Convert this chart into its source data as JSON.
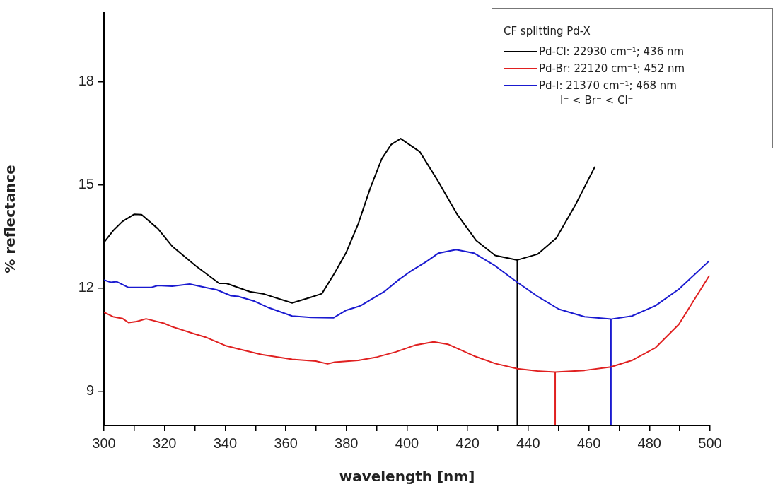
{
  "chart_data": {
    "type": "line",
    "xlabel": "wavelength [nm]",
    "ylabel": "% reflectance",
    "legend_title": "CF splitting Pd-X",
    "annotations": [
      "I⁻ < Br⁻ < Cl⁻"
    ],
    "xlim": [
      300,
      500
    ],
    "xticks": [
      300,
      {
        "value": 310,
        "label": null
      },
      320,
      {
        "value": 330,
        "label": null
      },
      340,
      {
        "value": 350,
        "label": null
      },
      360,
      {
        "value": 370,
        "label": null
      },
      380,
      {
        "value": 390,
        "label": null
      },
      400,
      {
        "value": 410,
        "label": null
      },
      420,
      {
        "value": 430,
        "label": null
      },
      440,
      {
        "value": 450,
        "label": null
      },
      460,
      {
        "value": 470,
        "label": null
      },
      480,
      {
        "value": 490,
        "label": null
      },
      500
    ],
    "ylim": [
      8,
      20
    ],
    "yticks": [
      9,
      12,
      15,
      18
    ],
    "grid": false,
    "legend": "top right",
    "series": [
      {
        "name": "Pd-Cl: 22930 cm⁻¹; 436 nm",
        "color": "#000000",
        "x": [
          300,
          303,
          306.1,
          310,
          312.4,
          317.8,
          322.5,
          330.3,
          338,
          340.4,
          348.1,
          352.8,
          362.1,
          368.4,
          371.9,
          376.1,
          380,
          383.9,
          387.8,
          391.7,
          394.8,
          397.9,
          404.2,
          410.4,
          416.6,
          422.8,
          429.1,
          436.4,
          443.1,
          449.3,
          455.5,
          462
        ],
        "values": [
          13.32,
          13.66,
          13.93,
          14.14,
          14.13,
          13.72,
          13.21,
          12.64,
          12.13,
          12.13,
          11.89,
          11.82,
          11.56,
          11.73,
          11.83,
          12.43,
          13.04,
          13.86,
          14.88,
          15.76,
          16.17,
          16.34,
          15.96,
          15.08,
          14.13,
          13.38,
          12.94,
          12.81,
          12.98,
          13.45,
          14.4,
          15.52
        ]
      },
      {
        "name": "Pd-Br: 22120 cm⁻¹; 452 nm",
        "color": "#e02020",
        "x": [
          300,
          303,
          306.1,
          308.1,
          310.8,
          313.9,
          319.8,
          322.5,
          329.5,
          333.4,
          340.4,
          345,
          352,
          362.1,
          369.9,
          373.8,
          376.1,
          383.9,
          390.2,
          396.4,
          402.6,
          408.8,
          413.5,
          422.1,
          429.1,
          436.4,
          443.1,
          448.9,
          458.6,
          467.3,
          474.2,
          482,
          489.7,
          499.8
        ],
        "values": [
          11.29,
          11.16,
          11.11,
          10.99,
          11.02,
          11.1,
          10.97,
          10.87,
          10.67,
          10.57,
          10.31,
          10.21,
          10.06,
          9.92,
          9.87,
          9.79,
          9.84,
          9.89,
          9.99,
          10.14,
          10.33,
          10.43,
          10.36,
          10.02,
          9.8,
          9.65,
          9.58,
          9.55,
          9.6,
          9.7,
          9.89,
          10.26,
          10.94,
          12.36
        ]
      },
      {
        "name": "Pd-I: 21370 cm⁻¹; 468 nm",
        "color": "#1a1ad0",
        "x": [
          300,
          302.3,
          304.2,
          308.1,
          315.5,
          317.8,
          322.5,
          328.3,
          333.4,
          337.3,
          341.9,
          344.3,
          349.7,
          354.4,
          362.1,
          368.4,
          375.8,
          380,
          384.7,
          392.5,
          397.2,
          401,
          406.5,
          410.4,
          416.2,
          422.1,
          429.1,
          436.4,
          443.1,
          450.1,
          458.6,
          467.3,
          474.2,
          482,
          489.7,
          499.8
        ],
        "values": [
          12.23,
          12.16,
          12.18,
          12.01,
          12.01,
          12.07,
          12.05,
          12.11,
          12.01,
          11.94,
          11.77,
          11.75,
          11.61,
          11.42,
          11.18,
          11.14,
          11.13,
          11.35,
          11.48,
          11.89,
          12.23,
          12.47,
          12.77,
          13.01,
          13.11,
          13.01,
          12.64,
          12.16,
          11.75,
          11.38,
          11.16,
          11.09,
          11.18,
          11.48,
          11.96,
          12.79
        ]
      },
      {
        "color": "#000000",
        "x": [
          436.4,
          436.4
        ],
        "values": [
          8,
          12.81
        ]
      },
      {
        "color": "#e02020",
        "x": [
          448.9,
          448.9
        ],
        "values": [
          8,
          9.55
        ]
      },
      {
        "color": "#1a1ad0",
        "x": [
          467.3,
          467.3
        ],
        "values": [
          8,
          11.09
        ]
      }
    ]
  }
}
